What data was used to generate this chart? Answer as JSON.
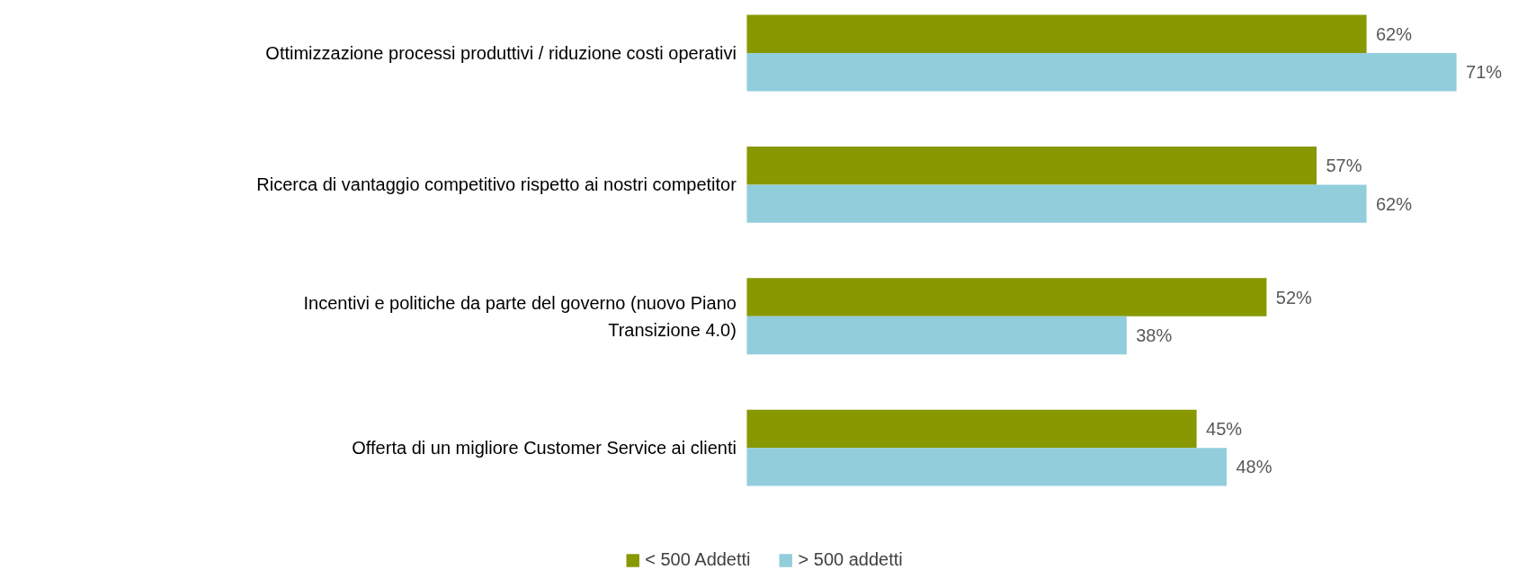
{
  "chart_data": {
    "type": "bar",
    "orientation": "horizontal",
    "categories": [
      "Ottimizzazione processi produttivi / riduzione costi operativi",
      "Ricerca di vantaggio competitivo rispetto ai nostri competitor",
      "Incentivi e politiche da parte del governo (nuovo Piano Transizione 4.0)",
      "Offerta di un migliore Customer Service ai clienti"
    ],
    "series": [
      {
        "name": "< 500 Addetti",
        "color": "#879800",
        "values": [
          62,
          57,
          52,
          45
        ],
        "value_labels": [
          "62%",
          "57%",
          "52%",
          "45%"
        ]
      },
      {
        "name": "> 500 addetti",
        "color": "#92cddc",
        "values": [
          71,
          62,
          38,
          48
        ],
        "value_labels": [
          "71%",
          "62%",
          "38%",
          "48%"
        ]
      }
    ],
    "legend": "bottom",
    "grid": false
  }
}
